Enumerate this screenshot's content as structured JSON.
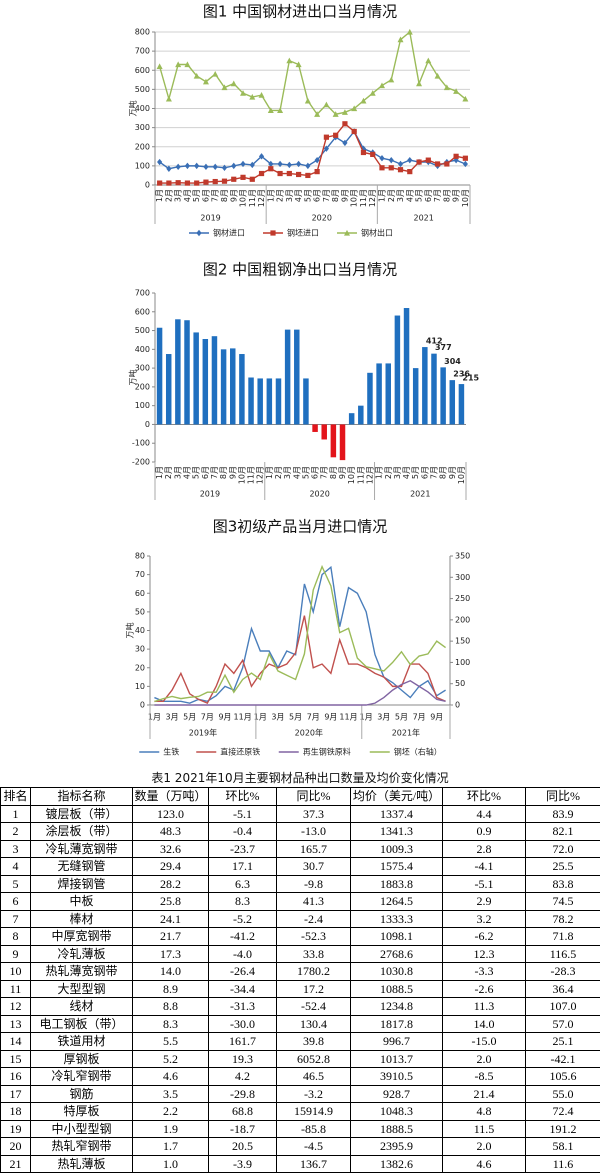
{
  "chart_data": [
    {
      "type": "line",
      "title": "图1 中国钢材进出口当月情况",
      "y_label": "万吨",
      "categories": [
        "1月",
        "2月",
        "3月",
        "4月",
        "5月",
        "6月",
        "7月",
        "8月",
        "9月",
        "10月",
        "11月",
        "12月",
        "1月",
        "2月",
        "3月",
        "4月",
        "5月",
        "6月",
        "7月",
        "8月",
        "9月",
        "10月",
        "11月",
        "12月",
        "1月",
        "2月",
        "3月",
        "4月",
        "5月",
        "6月",
        "7月",
        "8月",
        "9月",
        "10月"
      ],
      "year_labels": [
        "2019",
        "2020",
        "2021"
      ],
      "ylim": [
        0,
        800
      ],
      "yticks": [
        0,
        100,
        200,
        300,
        400,
        500,
        600,
        700,
        800
      ],
      "grid": true,
      "legend": "bottom",
      "label_rotation": -90,
      "series": [
        {
          "name": "钢材进口",
          "color": "#3a6fb5",
          "marker": "diamond",
          "values": [
            120,
            85,
            95,
            100,
            100,
            95,
            95,
            90,
            100,
            110,
            105,
            150,
            110,
            110,
            105,
            110,
            100,
            130,
            190,
            250,
            220,
            280,
            190,
            170,
            140,
            130,
            110,
            130,
            120,
            120,
            100,
            120,
            130,
            110
          ]
        },
        {
          "name": "钢坯进口",
          "color": "#c0392b",
          "marker": "square",
          "values": [
            10,
            10,
            12,
            10,
            10,
            15,
            18,
            20,
            30,
            40,
            30,
            60,
            85,
            60,
            60,
            55,
            50,
            70,
            250,
            260,
            320,
            280,
            170,
            160,
            90,
            90,
            80,
            70,
            120,
            130,
            110,
            110,
            150,
            140
          ]
        },
        {
          "name": "钢材出口",
          "color": "#9bbb59",
          "marker": "triangle",
          "values": [
            620,
            450,
            630,
            630,
            570,
            540,
            580,
            510,
            530,
            480,
            460,
            470,
            390,
            390,
            650,
            630,
            440,
            370,
            420,
            370,
            380,
            400,
            440,
            480,
            520,
            550,
            760,
            800,
            530,
            650,
            570,
            510,
            490,
            450
          ]
        }
      ]
    },
    {
      "type": "bar",
      "title": "图2 中国粗钢净出口当月情况",
      "y_label": "万吨",
      "categories": [
        "1月",
        "2月",
        "3月",
        "4月",
        "5月",
        "6月",
        "7月",
        "8月",
        "9月",
        "10月",
        "11月",
        "12月",
        "1月",
        "2月",
        "3月",
        "4月",
        "5月",
        "6月",
        "7月",
        "8月",
        "9月",
        "10月",
        "11月",
        "12月",
        "1月",
        "2月",
        "3月",
        "4月",
        "5月",
        "6月",
        "7月",
        "8月",
        "9月",
        "10月"
      ],
      "year_labels": [
        "2019",
        "2020",
        "2021"
      ],
      "ylim": [
        -200,
        700
      ],
      "yticks": [
        -200,
        -100,
        0,
        100,
        200,
        300,
        400,
        500,
        600,
        700
      ],
      "grid": false,
      "label_rotation": -90,
      "color": "#1f6fbf",
      "negative_color": "#e3141b",
      "values": [
        515,
        375,
        560,
        555,
        490,
        455,
        470,
        400,
        405,
        375,
        250,
        245,
        245,
        245,
        505,
        505,
        245,
        -40,
        -80,
        -175,
        -190,
        60,
        100,
        275,
        325,
        325,
        580,
        620,
        300,
        412,
        377,
        304,
        236,
        215
      ],
      "value_labels": [
        null,
        null,
        null,
        null,
        null,
        null,
        null,
        null,
        null,
        null,
        null,
        null,
        null,
        null,
        null,
        null,
        null,
        null,
        null,
        null,
        null,
        null,
        null,
        null,
        null,
        null,
        null,
        null,
        null,
        "412",
        "377",
        "304",
        "236",
        "215"
      ]
    },
    {
      "type": "line",
      "title": "图3初级产品当月进口情况",
      "y_label": "万吨",
      "categories": [
        "1月",
        null,
        "3月",
        null,
        "5月",
        null,
        "7月",
        null,
        "9月",
        null,
        "11月",
        null,
        "1月",
        null,
        "3月",
        null,
        "5月",
        null,
        "7月",
        null,
        "9月",
        null,
        "11月",
        null,
        "1月",
        null,
        "3月",
        null,
        "5月",
        null,
        "7月",
        null,
        "9月",
        null
      ],
      "year_labels": [
        "2019年",
        "2020年",
        "2021年"
      ],
      "ylim": [
        0,
        80
      ],
      "yticks": [
        0,
        10,
        20,
        30,
        40,
        50,
        60,
        70,
        80
      ],
      "y2lim": [
        0,
        350
      ],
      "y2ticks": [
        0,
        50,
        100,
        150,
        200,
        250,
        300,
        350
      ],
      "grid": false,
      "legend": "bottom",
      "label_rotation": 0,
      "series": [
        {
          "name": "生铁",
          "color": "#4a7ebb",
          "values": [
            4,
            2,
            2,
            2,
            1,
            3,
            2,
            5,
            10,
            8,
            20,
            41,
            29,
            29,
            20,
            29,
            27,
            65,
            50,
            70,
            74,
            42,
            63,
            60,
            50,
            27,
            15,
            12,
            8,
            4,
            10,
            13,
            5,
            8
          ]
        },
        {
          "name": "直接还原铁",
          "color": "#c0504d",
          "values": [
            2,
            2,
            8,
            17,
            6,
            3,
            1,
            10,
            22,
            17,
            24,
            10,
            17,
            22,
            20,
            22,
            28,
            48,
            20,
            22,
            17,
            35,
            22,
            22,
            20,
            17,
            15,
            10,
            10,
            22,
            22,
            17,
            4,
            2
          ]
        },
        {
          "name": "再生钢铁原料",
          "color": "#8064a2",
          "values": [
            0,
            0,
            0,
            0,
            0,
            0,
            0,
            0,
            0,
            0,
            0,
            0,
            0,
            0,
            0,
            0,
            0,
            0,
            0,
            0,
            0,
            0,
            0,
            0,
            0,
            1,
            4,
            8,
            11,
            13,
            10,
            7,
            3,
            2
          ]
        },
        {
          "name": "钢坯（右轴）",
          "color": "#9bbb59",
          "axis": "y2",
          "values": [
            8,
            15,
            20,
            15,
            18,
            20,
            30,
            30,
            70,
            30,
            60,
            75,
            60,
            120,
            80,
            70,
            60,
            120,
            270,
            325,
            280,
            170,
            180,
            110,
            90,
            85,
            80,
            100,
            125,
            95,
            115,
            120,
            150,
            135
          ]
        }
      ]
    }
  ],
  "table": {
    "title": "表1 2021年10月主要钢材品种出口数量及均价变化情况",
    "header": [
      "排名",
      "指标名称",
      "数量（万吨）",
      "环比%",
      "同比%",
      "均价（美元/吨）",
      "环比%",
      "同比%"
    ],
    "rows": [
      [
        "1",
        "镀层板（带）",
        "123.0",
        "-5.1",
        "37.3",
        "1337.4",
        "4.4",
        "83.9"
      ],
      [
        "2",
        "涂层板（带）",
        "48.3",
        "-0.4",
        "-13.0",
        "1341.3",
        "0.9",
        "82.1"
      ],
      [
        "3",
        "冷轧薄宽钢带",
        "32.6",
        "-23.7",
        "165.7",
        "1009.3",
        "2.8",
        "72.0"
      ],
      [
        "4",
        "无缝钢管",
        "29.4",
        "17.1",
        "30.7",
        "1575.4",
        "-4.1",
        "25.5"
      ],
      [
        "5",
        "焊接钢管",
        "28.2",
        "6.3",
        "-9.8",
        "1883.8",
        "-5.1",
        "83.8"
      ],
      [
        "6",
        "中板",
        "25.8",
        "8.3",
        "41.3",
        "1264.5",
        "2.9",
        "74.5"
      ],
      [
        "7",
        "棒材",
        "24.1",
        "-5.2",
        "-2.4",
        "1333.3",
        "3.2",
        "78.2"
      ],
      [
        "8",
        "中厚宽钢带",
        "21.7",
        "-41.2",
        "-52.3",
        "1098.1",
        "-6.2",
        "71.8"
      ],
      [
        "9",
        "冷轧薄板",
        "17.3",
        "-4.0",
        "33.8",
        "2768.6",
        "12.3",
        "116.5"
      ],
      [
        "10",
        "热轧薄宽钢带",
        "14.0",
        "-26.4",
        "1780.2",
        "1030.8",
        "-3.3",
        "-28.3"
      ],
      [
        "11",
        "大型型钢",
        "8.9",
        "-34.4",
        "17.2",
        "1088.5",
        "-2.6",
        "36.4"
      ],
      [
        "12",
        "线材",
        "8.8",
        "-31.3",
        "-52.4",
        "1234.8",
        "11.3",
        "107.0"
      ],
      [
        "13",
        "电工钢板（带）",
        "8.3",
        "-30.0",
        "130.4",
        "1817.8",
        "14.0",
        "57.0"
      ],
      [
        "14",
        "铁道用材",
        "5.5",
        "161.7",
        "39.8",
        "996.7",
        "-15.0",
        "25.1"
      ],
      [
        "15",
        "厚钢板",
        "5.2",
        "19.3",
        "6052.8",
        "1013.7",
        "2.0",
        "-42.1"
      ],
      [
        "16",
        "冷轧窄钢带",
        "4.6",
        "4.2",
        "46.5",
        "3910.5",
        "-8.5",
        "105.6"
      ],
      [
        "17",
        "钢筋",
        "3.5",
        "-29.8",
        "-3.2",
        "928.7",
        "21.4",
        "55.0"
      ],
      [
        "18",
        "特厚板",
        "2.2",
        "68.8",
        "15914.9",
        "1048.3",
        "4.8",
        "72.4"
      ],
      [
        "19",
        "中小型型钢",
        "1.9",
        "-18.7",
        "-85.8",
        "1888.5",
        "11.5",
        "191.2"
      ],
      [
        "20",
        "热轧窄钢带",
        "1.7",
        "20.5",
        "-4.5",
        "2395.9",
        "2.0",
        "58.1"
      ],
      [
        "21",
        "热轧薄板",
        "1.0",
        "-3.9",
        "136.7",
        "1382.6",
        "4.6",
        "11.6"
      ]
    ]
  }
}
